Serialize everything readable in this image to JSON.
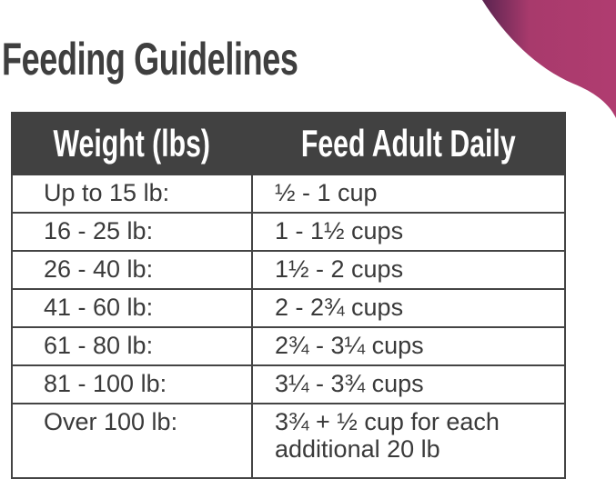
{
  "title": "Feeding Guidelines",
  "colors": {
    "accent": "#a83a6c",
    "header_bg": "#414141"
  },
  "table": {
    "headers": [
      "Weight (lbs)",
      "Feed Adult Daily"
    ],
    "rows": [
      [
        "Up to 15 lb:",
        "½ - 1 cup"
      ],
      [
        "16 - 25 lb:",
        "1 - 1½ cups"
      ],
      [
        "26 - 40 lb:",
        "1½ - 2 cups"
      ],
      [
        "41 - 60 lb:",
        "2 - 2¾ cups"
      ],
      [
        "61 - 80 lb:",
        "2¾ - 3¼ cups"
      ],
      [
        "81 - 100 lb:",
        "3¼ - 3¾ cups"
      ],
      [
        "Over 100 lb:",
        "3¾ + ½ cup for each additional 20 lb"
      ]
    ]
  }
}
